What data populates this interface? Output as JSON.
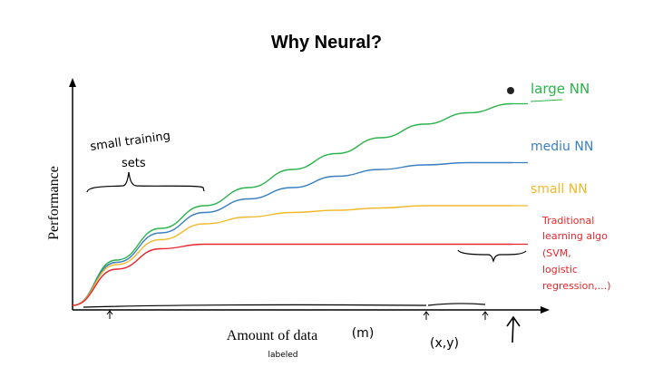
{
  "slide": {
    "title": "Why Neural?"
  },
  "chart_data": {
    "type": "line",
    "xlabel": "Amount of data",
    "ylabel": "Performance",
    "x_axis_notes": {
      "m": "(m)",
      "labeled": "labeled",
      "xy": "(x,y)"
    },
    "grid": false,
    "x": [
      0,
      10,
      20,
      30,
      40,
      50,
      60,
      70,
      80,
      90,
      100
    ],
    "ylim": [
      0,
      100
    ],
    "xlim": [
      0,
      100
    ],
    "series": [
      {
        "name": "large NN",
        "color": "#2ab34a",
        "values": [
          2,
          22,
          36,
          46,
          54,
          62,
          69,
          76,
          82,
          87,
          91
        ]
      },
      {
        "name": "medium NN",
        "color": "#3a7fc1",
        "values": [
          2,
          21,
          34,
          43,
          49,
          54,
          59,
          62,
          64,
          65,
          65
        ]
      },
      {
        "name": "small NN",
        "color": "#f2b92b",
        "values": [
          2,
          20,
          31,
          38,
          41,
          43,
          44,
          45,
          46,
          46,
          46
        ]
      },
      {
        "name": "Traditional learning algo",
        "color": "#e8262d",
        "values": [
          2,
          18,
          27,
          29,
          29,
          29,
          29,
          29,
          29,
          29,
          29
        ]
      }
    ],
    "series_labels": {
      "large": "large NN",
      "medium": "mediu NN",
      "small": "small NN",
      "traditional": [
        "Traditional",
        "learning algo",
        "(SVM,",
        "logistic",
        "regression,...)"
      ]
    },
    "annotations": {
      "small_training_sets": [
        "small training",
        "sets"
      ]
    }
  }
}
